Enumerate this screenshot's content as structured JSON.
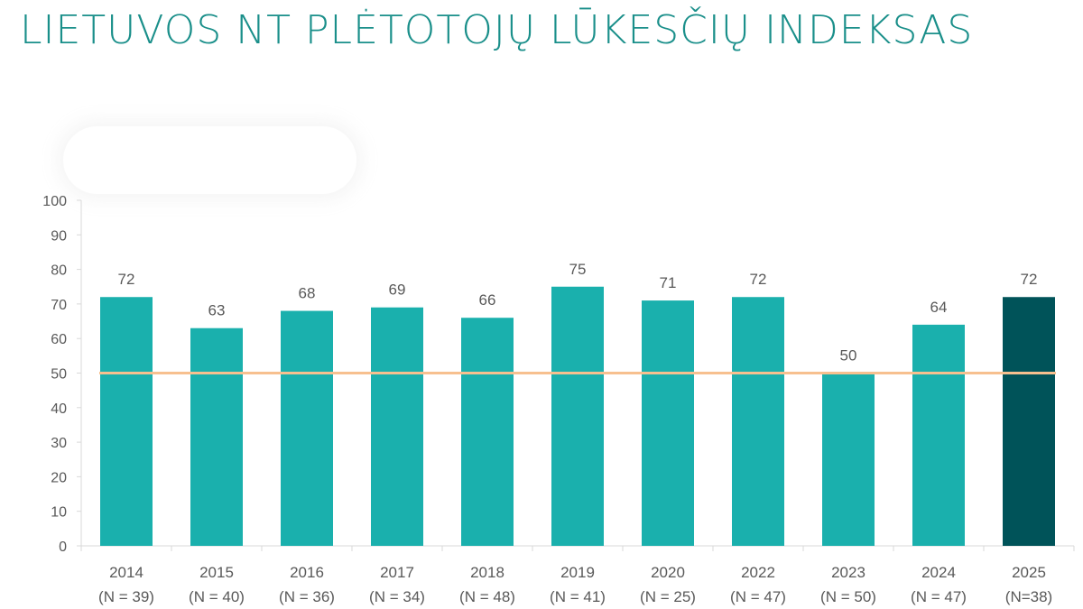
{
  "title": "LIETUVOS NT PLĖTOTOJŲ LŪKESČIŲ INDEKSAS",
  "chart_data": {
    "type": "bar",
    "title": "LIETUVOS NT PLĖTOTOJŲ LŪKESČIŲ INDEKSAS",
    "categories": [
      "2014",
      "2015",
      "2016",
      "2017",
      "2018",
      "2019",
      "2020",
      "2022",
      "2023",
      "2024",
      "2025"
    ],
    "category_sublabels": [
      "(N = 39)",
      "(N = 40)",
      "(N = 36)",
      "(N = 34)",
      "(N = 48)",
      "(N = 41)",
      "(N = 25)",
      "(N = 47)",
      "(N = 50)",
      "(N = 47)",
      "(N=38)"
    ],
    "values": [
      72,
      63,
      68,
      69,
      66,
      75,
      71,
      72,
      50,
      64,
      72
    ],
    "data_labels": [
      "72",
      "63",
      "68",
      "69",
      "66",
      "75",
      "71",
      "72",
      "50",
      "64",
      "72"
    ],
    "yticks": [
      "0",
      "10",
      "20",
      "30",
      "40",
      "50",
      "60",
      "70",
      "80",
      "90",
      "100"
    ],
    "ylim": [
      0,
      100
    ],
    "reference_line": 50,
    "grid": false,
    "colors": {
      "bar": "#1ab0ad",
      "highlight_bar": "#005359",
      "reference_line": "#f7c08f",
      "title": "#1a8f8a"
    },
    "highlight_index": 10
  }
}
